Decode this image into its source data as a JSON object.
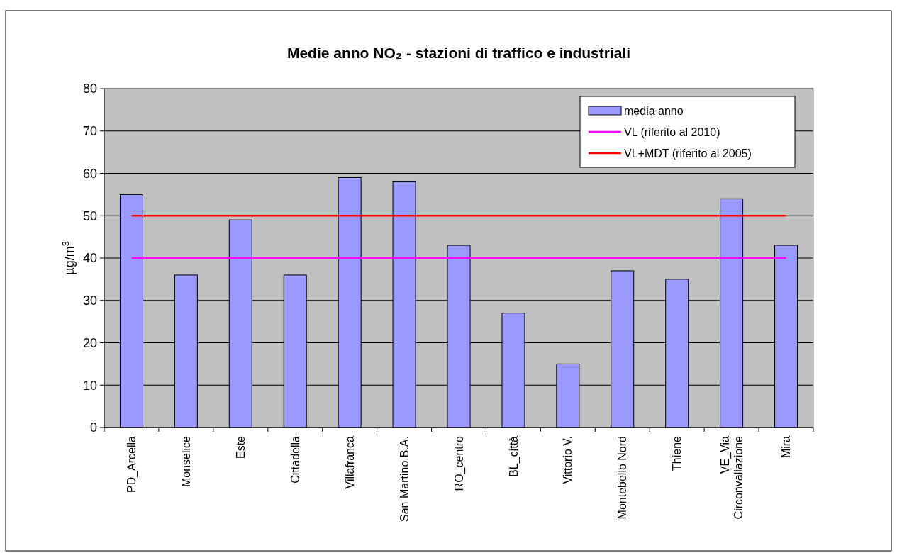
{
  "chart_data": {
    "type": "bar",
    "title": "Medie anno NO₂ - stazioni di traffico e industriali",
    "ylabel": "µg/m$^{3}$",
    "categories": [
      "PD_Arcella",
      "Monselice",
      "Este",
      "Cittadella",
      "Villafranca",
      "San Martino B.A.",
      "RO_centro",
      "BL_città",
      "Vittorio V.",
      "Montebello Nord",
      "Thiene",
      "VE_Via Circonvallazione",
      "Mira"
    ],
    "series": [
      {
        "name": "media anno",
        "color": "#9999ff",
        "values": [
          55,
          36,
          49,
          36,
          59,
          58,
          43,
          27,
          15,
          37,
          35,
          54,
          43
        ]
      }
    ],
    "ylim": [
      0,
      80
    ],
    "yticks": [
      0,
      10,
      20,
      30,
      40,
      50,
      60,
      70,
      80
    ],
    "grid": "y",
    "legend": "top right",
    "ref_lines": [
      {
        "axis": "y",
        "value": 40,
        "label": "VL (riferito al 2010)",
        "color": "#ff00ff"
      },
      {
        "axis": "y",
        "value": 50,
        "label": "VL+MDT (riferito al 2005)",
        "color": "#ff0000"
      }
    ]
  }
}
